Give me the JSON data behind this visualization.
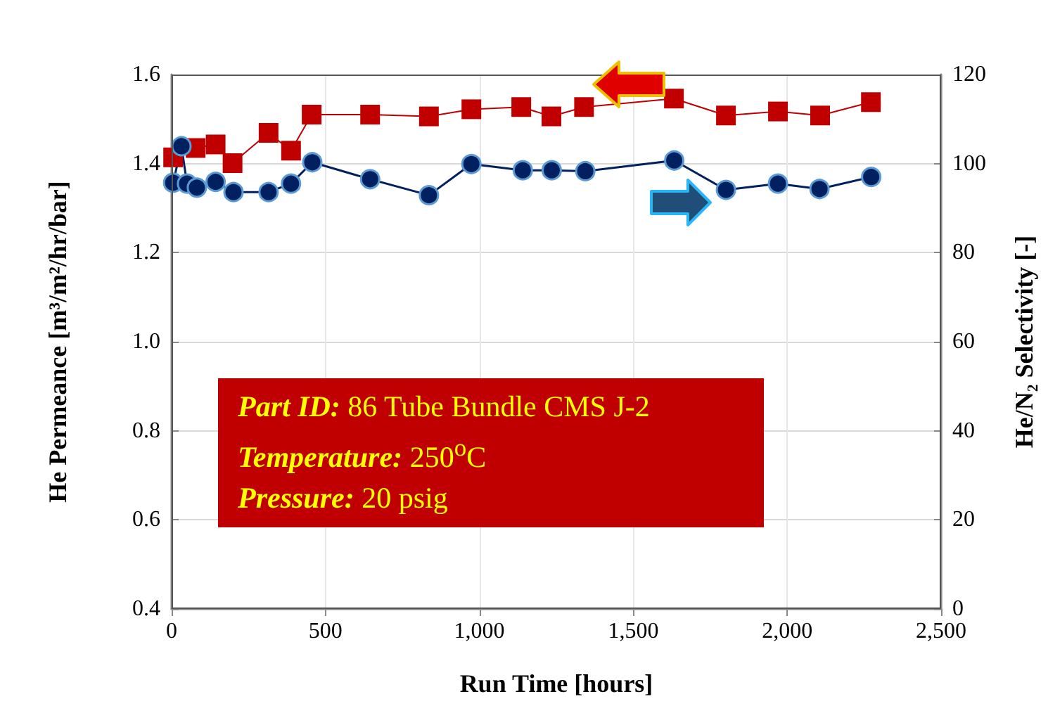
{
  "chart_data": {
    "type": "line",
    "xlabel": "Run Time [hours]",
    "ylabel": "He Permeance [m³/m²/hr/bar]",
    "y2label": "He/N₂ Selectivity [-]",
    "annotations": [
      "Part ID:  86 Tube Bundle CMS J-2",
      "Temperature:  250$^{o}$C",
      "Pressure:  20 psig"
    ],
    "series": [
      {
        "color": "#c00000",
        "marker": "square",
        "x": [
          5,
          78,
          143,
          198,
          315,
          388,
          455,
          645,
          836,
          974,
          1136,
          1234,
          1340,
          1632,
          1801,
          1970,
          2107,
          2272
        ],
        "values": [
          1.414,
          1.435,
          1.443,
          1.401,
          1.469,
          1.429,
          1.51,
          1.51,
          1.506,
          1.522,
          1.527,
          1.506,
          1.527,
          1.546,
          1.508,
          1.517,
          1.508,
          1.538
        ]
      },
      {
        "color": "#002060",
        "marker": "circle",
        "axis": "y2",
        "x": [
          5,
          32,
          50,
          82,
          143,
          201,
          315,
          388,
          457,
          645,
          836,
          974,
          1141,
          1235,
          1344,
          1633,
          1801,
          1970,
          2105,
          2273
        ],
        "values": [
          95.7,
          103.9,
          95.5,
          94.6,
          95.9,
          93.6,
          93.6,
          95.5,
          100.3,
          96.5,
          92.9,
          99.9,
          98.5,
          98.5,
          98.3,
          100.7,
          94.1,
          95.5,
          94.3,
          97
        ]
      }
    ],
    "xlim": [
      0,
      2500
    ],
    "xticks": [
      0,
      500,
      {
        "value": 1000,
        "label": "1,000"
      },
      {
        "value": 1500,
        "label": "1,500"
      },
      {
        "value": 2000,
        "label": "2,000"
      },
      {
        "value": 2500,
        "label": "2,500"
      }
    ],
    "ylim": [
      0.4,
      1.6
    ],
    "yticks": [
      0.4,
      0.6,
      0.8,
      {
        "value": 1,
        "label": "1.0"
      },
      1.2,
      1.4,
      1.6
    ],
    "y2lim": [
      0,
      120
    ],
    "y2ticks": [
      0,
      20,
      40,
      60,
      80,
      100,
      120
    ],
    "grid": true
  }
}
